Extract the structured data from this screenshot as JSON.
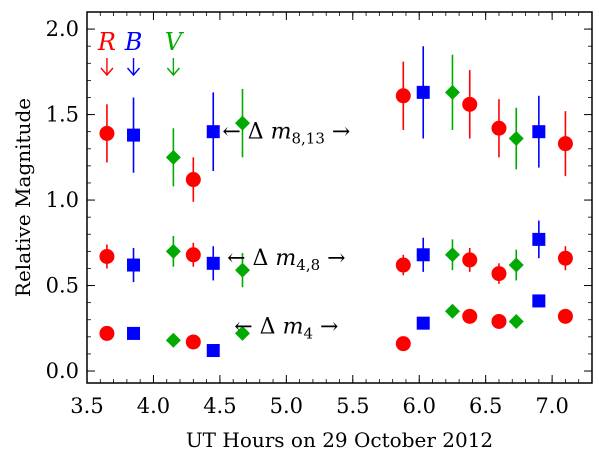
{
  "chart_data": {
    "type": "scatter",
    "xlabel": "UT Hours on 29 October 2012",
    "ylabel": "Relative Magnitude",
    "xlim": [
      3.5,
      7.3
    ],
    "ylim": [
      -0.07,
      2.1
    ],
    "xticks": [
      "3.5",
      "4.0",
      "4.5",
      "5.0",
      "5.5",
      "6.0",
      "6.5",
      "7.0"
    ],
    "yticks": [
      "0.0",
      "0.5",
      "1.0",
      "1.5",
      "2.0"
    ],
    "legend": [
      {
        "label": "R",
        "color": "#ff0000",
        "marker": "circle"
      },
      {
        "label": "B",
        "color": "#0000ff",
        "marker": "square"
      },
      {
        "label": "V",
        "color": "#00aa00",
        "marker": "diamond"
      }
    ],
    "annotations": [
      {
        "text": "← Δ m8,13 →",
        "parts": [
          "← Δ ",
          "m",
          "8,13",
          " →"
        ],
        "x": 5.0,
        "y": 1.4
      },
      {
        "text": "← Δ m4,8 →",
        "parts": [
          "← Δ ",
          "m",
          "4,8",
          " →"
        ],
        "x": 5.0,
        "y": 0.66
      },
      {
        "text": "← Δ m4 →",
        "parts": [
          "← Δ ",
          "m",
          "4",
          " →"
        ],
        "x": 5.0,
        "y": 0.26
      }
    ],
    "series": [
      {
        "name": "R",
        "color": "#ff0000",
        "marker": "circle",
        "points": [
          {
            "x": 3.65,
            "y": 1.39,
            "err": 0.17
          },
          {
            "x": 4.3,
            "y": 1.12,
            "err": 0.13
          },
          {
            "x": 5.88,
            "y": 1.61,
            "err": 0.2
          },
          {
            "x": 6.38,
            "y": 1.56,
            "err": 0.2
          },
          {
            "x": 6.6,
            "y": 1.42,
            "err": 0.17
          },
          {
            "x": 7.1,
            "y": 1.33,
            "err": 0.19
          },
          {
            "x": 3.65,
            "y": 0.67,
            "err": 0.07
          },
          {
            "x": 4.3,
            "y": 0.68,
            "err": 0.07
          },
          {
            "x": 5.88,
            "y": 0.62,
            "err": 0.06
          },
          {
            "x": 6.38,
            "y": 0.65,
            "err": 0.07
          },
          {
            "x": 6.6,
            "y": 0.57,
            "err": 0.06
          },
          {
            "x": 7.1,
            "y": 0.66,
            "err": 0.07
          },
          {
            "x": 3.65,
            "y": 0.22,
            "err": 0.0
          },
          {
            "x": 4.3,
            "y": 0.17,
            "err": 0.0
          },
          {
            "x": 5.88,
            "y": 0.16,
            "err": 0.0
          },
          {
            "x": 6.38,
            "y": 0.32,
            "err": 0.0
          },
          {
            "x": 6.6,
            "y": 0.29,
            "err": 0.0
          },
          {
            "x": 7.1,
            "y": 0.32,
            "err": 0.0
          }
        ]
      },
      {
        "name": "B",
        "color": "#0000ff",
        "marker": "square",
        "points": [
          {
            "x": 3.85,
            "y": 1.38,
            "err": 0.22
          },
          {
            "x": 4.45,
            "y": 1.4,
            "err": 0.23
          },
          {
            "x": 6.03,
            "y": 1.63,
            "err": 0.27
          },
          {
            "x": 6.9,
            "y": 1.4,
            "err": 0.21
          },
          {
            "x": 3.85,
            "y": 0.62,
            "err": 0.1
          },
          {
            "x": 4.45,
            "y": 0.63,
            "err": 0.1
          },
          {
            "x": 6.03,
            "y": 0.68,
            "err": 0.1
          },
          {
            "x": 6.9,
            "y": 0.77,
            "err": 0.11
          },
          {
            "x": 3.85,
            "y": 0.22,
            "err": 0.0
          },
          {
            "x": 4.45,
            "y": 0.12,
            "err": 0.0
          },
          {
            "x": 6.03,
            "y": 0.28,
            "err": 0.0
          },
          {
            "x": 6.9,
            "y": 0.41,
            "err": 0.0
          }
        ]
      },
      {
        "name": "V",
        "color": "#00aa00",
        "marker": "diamond",
        "points": [
          {
            "x": 4.15,
            "y": 1.25,
            "err": 0.17
          },
          {
            "x": 4.67,
            "y": 1.45,
            "err": 0.2
          },
          {
            "x": 6.25,
            "y": 1.63,
            "err": 0.22
          },
          {
            "x": 6.73,
            "y": 1.36,
            "err": 0.18
          },
          {
            "x": 4.15,
            "y": 0.7,
            "err": 0.09
          },
          {
            "x": 4.67,
            "y": 0.59,
            "err": 0.1
          },
          {
            "x": 6.25,
            "y": 0.68,
            "err": 0.09
          },
          {
            "x": 6.73,
            "y": 0.62,
            "err": 0.09
          },
          {
            "x": 4.15,
            "y": 0.18,
            "err": 0.0
          },
          {
            "x": 4.67,
            "y": 0.22,
            "err": 0.0
          },
          {
            "x": 6.25,
            "y": 0.35,
            "err": 0.0
          },
          {
            "x": 6.73,
            "y": 0.29,
            "err": 0.0
          }
        ]
      }
    ]
  }
}
